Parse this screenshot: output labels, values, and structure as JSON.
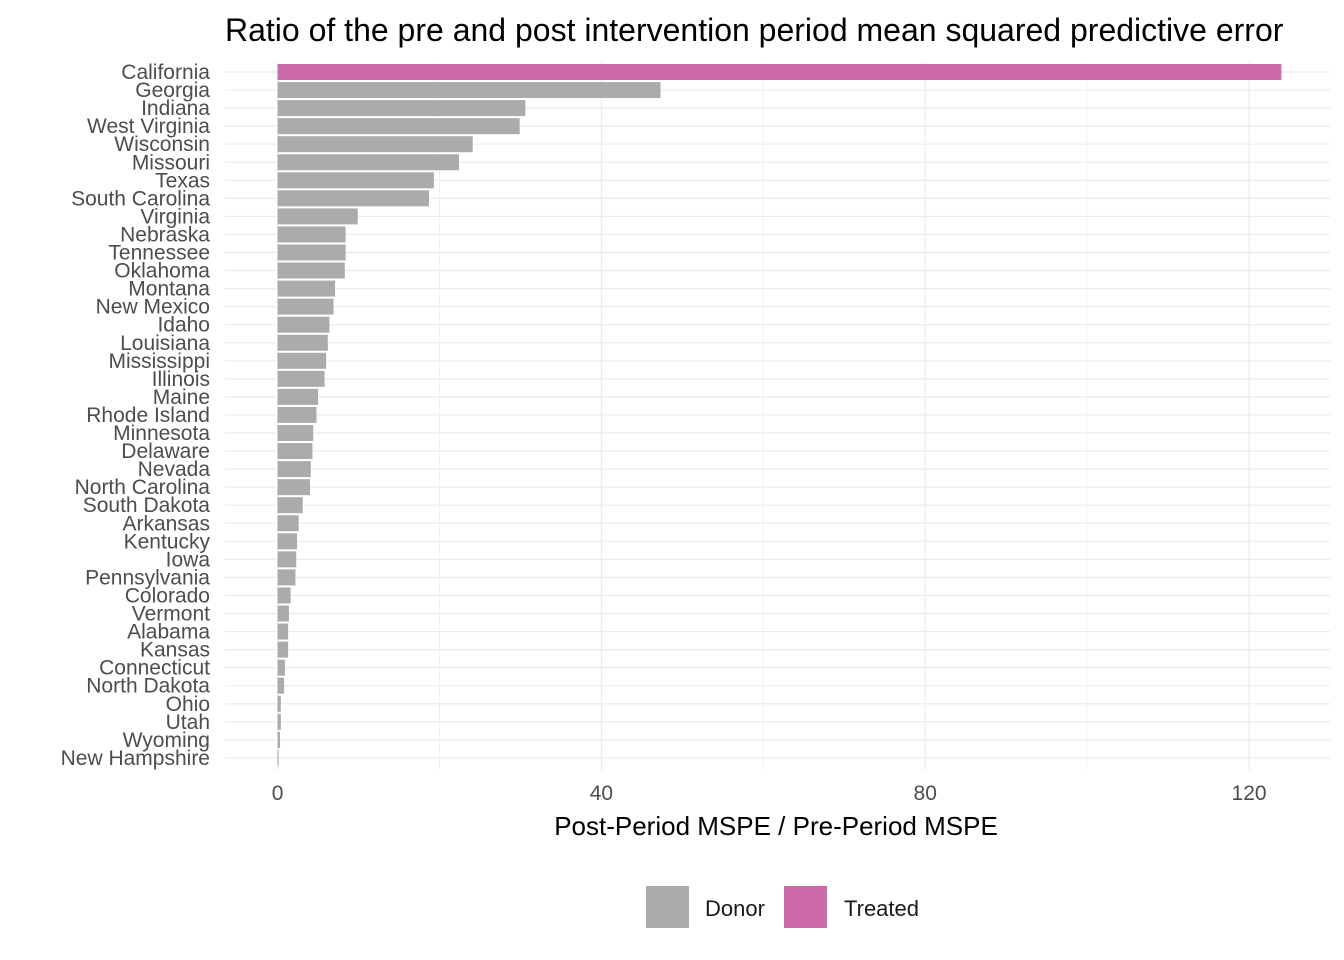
{
  "chart_data": {
    "type": "bar",
    "orientation": "horizontal",
    "title": "Ratio of the pre and post intervention period mean squared predictive error",
    "xlabel": "Post-Period MSPE / Pre-Period MSPE",
    "ylabel": "",
    "xlim": [
      -6.5,
      130
    ],
    "xticks": [
      0,
      40,
      80,
      120
    ],
    "grid": true,
    "legend_position": "bottom",
    "categories": [
      "California",
      "Georgia",
      "Indiana",
      "West Virginia",
      "Wisconsin",
      "Missouri",
      "Texas",
      "South Carolina",
      "Virginia",
      "Nebraska",
      "Tennessee",
      "Oklahoma",
      "Montana",
      "New Mexico",
      "Idaho",
      "Louisiana",
      "Mississippi",
      "Illinois",
      "Maine",
      "Rhode Island",
      "Minnesota",
      "Delaware",
      "Nevada",
      "North Carolina",
      "South Dakota",
      "Arkansas",
      "Kentucky",
      "Iowa",
      "Pennsylvania",
      "Colorado",
      "Vermont",
      "Alabama",
      "Kansas",
      "Connecticut",
      "North Dakota",
      "Ohio",
      "Utah",
      "Wyoming",
      "New Hampshire"
    ],
    "values": [
      124.0,
      47.3,
      30.6,
      29.9,
      24.1,
      22.4,
      19.3,
      18.7,
      9.9,
      8.4,
      8.4,
      8.3,
      7.1,
      6.9,
      6.4,
      6.2,
      6.0,
      5.8,
      5.0,
      4.8,
      4.4,
      4.3,
      4.1,
      4.0,
      3.1,
      2.6,
      2.4,
      2.3,
      2.2,
      1.6,
      1.4,
      1.3,
      1.3,
      0.9,
      0.8,
      0.4,
      0.4,
      0.3,
      0.1
    ],
    "groups": [
      "Treated",
      "Donor",
      "Donor",
      "Donor",
      "Donor",
      "Donor",
      "Donor",
      "Donor",
      "Donor",
      "Donor",
      "Donor",
      "Donor",
      "Donor",
      "Donor",
      "Donor",
      "Donor",
      "Donor",
      "Donor",
      "Donor",
      "Donor",
      "Donor",
      "Donor",
      "Donor",
      "Donor",
      "Donor",
      "Donor",
      "Donor",
      "Donor",
      "Donor",
      "Donor",
      "Donor",
      "Donor",
      "Donor",
      "Donor",
      "Donor",
      "Donor",
      "Donor",
      "Donor",
      "Donor"
    ],
    "legend": [
      {
        "name": "Donor",
        "color": "#ababab"
      },
      {
        "name": "Treated",
        "color": "#cc6aa8"
      }
    ]
  }
}
